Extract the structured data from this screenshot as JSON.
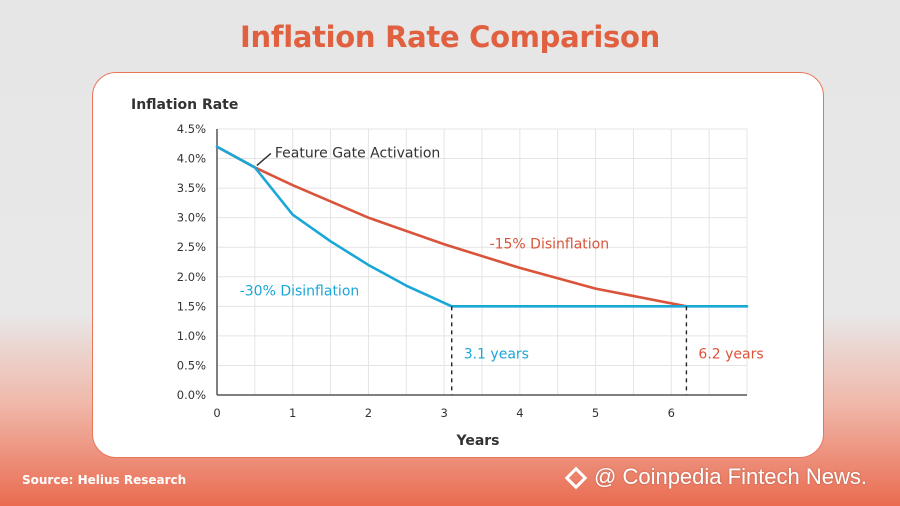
{
  "title": "Inflation Rate Comparison",
  "source": "Source: Helius Research",
  "watermark": "@ Coinpedia Fintech News.",
  "colors": {
    "accent": "#e0603f",
    "red_series": "#d9543a",
    "blue_series": "#1aa7d8"
  },
  "chart_data": {
    "type": "line",
    "title": "Inflation Rate Comparison",
    "ylabel": "Inflation Rate",
    "xlabel": "Years",
    "xlim": [
      0,
      7
    ],
    "ylim": [
      0,
      4.5
    ],
    "x_ticks": [
      0,
      1,
      2,
      3,
      4,
      5,
      6
    ],
    "y_ticks": [
      "0.0%",
      "0.5%",
      "1.0%",
      "1.5%",
      "2.0%",
      "2.5%",
      "3.0%",
      "3.5%",
      "4.0%",
      "4.5%"
    ],
    "y_tick_values": [
      0,
      0.5,
      1.0,
      1.5,
      2.0,
      2.5,
      3.0,
      3.5,
      4.0,
      4.5
    ],
    "grid": true,
    "series": [
      {
        "name": "-15% Disinflation",
        "color": "#d9543a",
        "x": [
          0,
          0.5,
          1,
          2,
          3,
          4,
          5,
          6.2
        ],
        "y": [
          4.2,
          3.85,
          3.55,
          3.0,
          2.55,
          2.15,
          1.8,
          1.5
        ]
      },
      {
        "name": "-30% Disinflation",
        "color": "#1aa7d8",
        "x": [
          0,
          0.5,
          1,
          1.5,
          2,
          2.5,
          3.1,
          4,
          5,
          6,
          7
        ],
        "y": [
          4.2,
          3.85,
          3.05,
          2.6,
          2.2,
          1.85,
          1.5,
          1.5,
          1.5,
          1.5,
          1.5
        ]
      }
    ],
    "annotations": [
      {
        "text": "Feature Gate Activation",
        "x": 0.5,
        "y": 3.85,
        "color": "#333333"
      },
      {
        "text": "-15% Disinflation",
        "x": 3.6,
        "y": 2.55,
        "color": "#d9543a"
      },
      {
        "text": "-30% Disinflation",
        "x": 0.3,
        "y": 1.75,
        "color": "#1aa7d8"
      },
      {
        "text": "3.1 years",
        "x": 3.1,
        "y": 0.7,
        "color": "#1aa7d8",
        "marker_x": 3.1
      },
      {
        "text": "6.2 years",
        "x": 6.2,
        "y": 0.7,
        "color": "#d9543a",
        "marker_x": 6.2
      }
    ]
  }
}
